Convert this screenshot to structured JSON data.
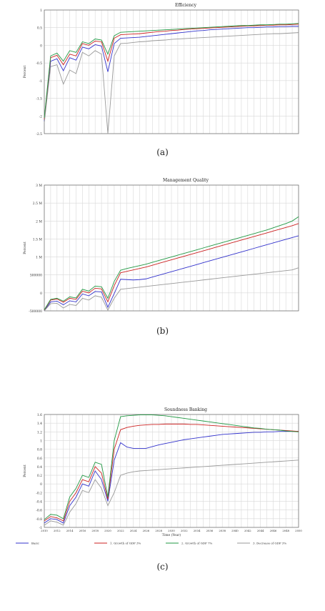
{
  "chart_data": [
    {
      "type": "line",
      "title": "Efficiency",
      "ylabel": "Percent",
      "ylim": [
        -2.5,
        1
      ],
      "yticks": [
        1,
        0.5,
        0,
        -0.5,
        -1,
        -1.5,
        -2,
        -2.5
      ],
      "x": [
        0,
        1,
        2,
        3,
        4,
        5,
        6,
        7,
        8,
        9,
        10,
        11,
        12,
        13,
        14,
        15,
        16,
        17,
        18,
        19,
        20,
        21,
        22,
        23,
        24,
        25,
        26,
        27,
        28,
        29,
        30,
        31,
        32,
        33,
        34,
        35,
        36,
        37,
        38,
        39,
        40
      ],
      "grid": true,
      "series": [
        {
          "color": "#3333cc",
          "values": [
            -2.15,
            -0.45,
            -0.38,
            -0.72,
            -0.35,
            -0.42,
            -0.05,
            -0.1,
            0.02,
            -0.02,
            -0.75,
            0.05,
            0.2,
            0.21,
            0.22,
            0.23,
            0.25,
            0.27,
            0.29,
            0.31,
            0.33,
            0.35,
            0.37,
            0.39,
            0.41,
            0.42,
            0.44,
            0.45,
            0.46,
            0.47,
            0.48,
            0.49,
            0.5,
            0.5,
            0.51,
            0.52,
            0.52,
            0.53,
            0.53,
            0.54,
            0.54
          ]
        },
        {
          "color": "#cc2222",
          "values": [
            -2.1,
            -0.35,
            -0.28,
            -0.55,
            -0.25,
            -0.3,
            0.05,
            0.0,
            0.12,
            0.1,
            -0.45,
            0.2,
            0.3,
            0.31,
            0.32,
            0.33,
            0.35,
            0.37,
            0.39,
            0.4,
            0.42,
            0.43,
            0.45,
            0.46,
            0.47,
            0.48,
            0.49,
            0.5,
            0.51,
            0.52,
            0.53,
            0.54,
            0.55,
            0.55,
            0.56,
            0.57,
            0.57,
            0.58,
            0.58,
            0.59,
            0.6
          ]
        },
        {
          "color": "#229944",
          "values": [
            -2.05,
            -0.3,
            -0.22,
            -0.45,
            -0.15,
            -0.2,
            0.1,
            0.05,
            0.18,
            0.15,
            -0.25,
            0.27,
            0.37,
            0.38,
            0.39,
            0.4,
            0.41,
            0.42,
            0.43,
            0.44,
            0.45,
            0.46,
            0.47,
            0.48,
            0.49,
            0.5,
            0.51,
            0.52,
            0.53,
            0.54,
            0.55,
            0.56,
            0.56,
            0.57,
            0.58,
            0.58,
            0.59,
            0.6,
            0.6,
            0.61,
            0.62
          ]
        },
        {
          "color": "#999999",
          "values": [
            -2.2,
            -0.6,
            -0.55,
            -1.1,
            -0.7,
            -0.8,
            -0.2,
            -0.3,
            -0.15,
            -0.25,
            -2.5,
            -0.3,
            0.05,
            0.06,
            0.08,
            0.1,
            0.11,
            0.13,
            0.14,
            0.15,
            0.17,
            0.18,
            0.19,
            0.2,
            0.21,
            0.22,
            0.23,
            0.24,
            0.25,
            0.26,
            0.27,
            0.28,
            0.29,
            0.3,
            0.31,
            0.32,
            0.33,
            0.33,
            0.34,
            0.35,
            0.36
          ]
        }
      ],
      "caption": "(a)"
    },
    {
      "type": "line",
      "title": "Management Quality",
      "ylabel": "Percent",
      "ylim": [
        -500000,
        3000000
      ],
      "yticks": [
        3000000,
        2500000,
        2000000,
        1500000,
        1000000,
        500000,
        0,
        -500000
      ],
      "ytick_labels": [
        "3 M",
        "2.5 M",
        "2 M",
        "1.5 M",
        "1 M",
        "500000",
        "0",
        "-500000"
      ],
      "x": [
        0,
        1,
        2,
        3,
        4,
        5,
        6,
        7,
        8,
        9,
        10,
        11,
        12,
        13,
        14,
        15,
        16,
        17,
        18,
        19,
        20,
        21,
        22,
        23,
        24,
        25,
        26,
        27,
        28,
        29,
        30,
        31,
        32,
        33,
        34,
        35,
        36,
        37,
        38,
        39,
        40
      ],
      "grid": true,
      "series": [
        {
          "color": "#3333cc",
          "values": [
            -500000,
            -250000,
            -230000,
            -330000,
            -220000,
            -250000,
            -30000,
            -80000,
            40000,
            30000,
            -400000,
            -20000,
            380000,
            370000,
            360000,
            370000,
            390000,
            440000,
            490000,
            540000,
            590000,
            640000,
            690000,
            740000,
            790000,
            840000,
            890000,
            940000,
            990000,
            1040000,
            1090000,
            1140000,
            1190000,
            1240000,
            1290000,
            1340000,
            1390000,
            1440000,
            1490000,
            1540000,
            1590000
          ]
        },
        {
          "color": "#cc2222",
          "values": [
            -480000,
            -200000,
            -170000,
            -260000,
            -150000,
            -180000,
            50000,
            0,
            130000,
            110000,
            -250000,
            200000,
            560000,
            600000,
            640000,
            680000,
            720000,
            770000,
            820000,
            870000,
            920000,
            970000,
            1020000,
            1070000,
            1120000,
            1170000,
            1220000,
            1270000,
            1320000,
            1370000,
            1420000,
            1470000,
            1520000,
            1570000,
            1620000,
            1670000,
            1720000,
            1770000,
            1820000,
            1870000,
            1930000
          ]
        },
        {
          "color": "#229944",
          "values": [
            -470000,
            -180000,
            -150000,
            -230000,
            -110000,
            -140000,
            100000,
            50000,
            190000,
            170000,
            -150000,
            320000,
            630000,
            680000,
            720000,
            760000,
            800000,
            850000,
            900000,
            950000,
            1000000,
            1050000,
            1100000,
            1150000,
            1200000,
            1250000,
            1300000,
            1350000,
            1400000,
            1450000,
            1500000,
            1550000,
            1600000,
            1650000,
            1700000,
            1750000,
            1810000,
            1870000,
            1930000,
            2000000,
            2120000
          ]
        },
        {
          "color": "#999999",
          "values": [
            -500000,
            -300000,
            -290000,
            -420000,
            -320000,
            -350000,
            -150000,
            -200000,
            -80000,
            -120000,
            -480000,
            -150000,
            100000,
            120000,
            140000,
            160000,
            180000,
            200000,
            220000,
            240000,
            260000,
            280000,
            300000,
            320000,
            340000,
            360000,
            380000,
            400000,
            420000,
            440000,
            460000,
            480000,
            500000,
            520000,
            540000,
            560000,
            580000,
            600000,
            620000,
            640000,
            700000
          ]
        }
      ],
      "caption": "(b)"
    },
    {
      "type": "line",
      "title": "Soundness Banking",
      "ylabel": "Percent",
      "xlabel": "Time (Year)",
      "ylim": [
        -1.0,
        1.6
      ],
      "yticks": [
        1.6,
        1.4,
        1.2,
        1,
        0.8,
        0.6,
        0.4,
        0.2,
        0,
        -0.2,
        -0.4,
        -0.6,
        -0.8,
        -1
      ],
      "ytick_labels": [
        "1.6",
        "1.4",
        "1.2",
        "1",
        "0.8",
        "0.6",
        "0.4",
        "0.2",
        "0",
        "-0.2",
        "-0.4",
        "-0.6",
        "-0.8",
        "-1"
      ],
      "x": [
        2010,
        2011,
        2012,
        2013,
        2014,
        2015,
        2016,
        2017,
        2018,
        2019,
        2020,
        2021,
        2022,
        2023,
        2024,
        2025,
        2026,
        2027,
        2028,
        2029,
        2030,
        2031,
        2032,
        2033,
        2034,
        2035,
        2036,
        2037,
        2038,
        2039,
        2040,
        2041,
        2042,
        2043,
        2044,
        2045,
        2046,
        2047,
        2048,
        2049,
        2050
      ],
      "xticks": [
        2010,
        2012,
        2014,
        2016,
        2018,
        2020,
        2022,
        2024,
        2026,
        2028,
        2030,
        2032,
        2034,
        2036,
        2038,
        2040,
        2042,
        2044,
        2046,
        2048,
        2050
      ],
      "xtick_labels": [
        "2010",
        "2012",
        "2014",
        "2016",
        "2018",
        "2020",
        "2022",
        "2024",
        "2026",
        "2028",
        "2030",
        "2032",
        "2034",
        "2036",
        "2038",
        "2040",
        "2042",
        "2044",
        "2046",
        "2048",
        "2050"
      ],
      "grid": true,
      "series": [
        {
          "name": "Basic",
          "color": "#3333cc",
          "values": [
            -0.9,
            -0.8,
            -0.82,
            -0.9,
            -0.5,
            -0.3,
            0.0,
            -0.05,
            0.3,
            0.1,
            -0.4,
            0.55,
            0.95,
            0.85,
            0.82,
            0.82,
            0.82,
            0.86,
            0.9,
            0.93,
            0.96,
            0.99,
            1.02,
            1.04,
            1.06,
            1.08,
            1.1,
            1.12,
            1.14,
            1.15,
            1.16,
            1.17,
            1.18,
            1.19,
            1.19,
            1.2,
            1.2,
            1.21,
            1.21,
            1.21,
            1.21
          ]
        },
        {
          "name": "1. Growth of GDP 3%",
          "color": "#cc2222",
          "values": [
            -0.85,
            -0.75,
            -0.78,
            -0.85,
            -0.4,
            -0.2,
            0.1,
            0.05,
            0.4,
            0.25,
            -0.35,
            0.8,
            1.25,
            1.3,
            1.33,
            1.35,
            1.36,
            1.37,
            1.37,
            1.38,
            1.38,
            1.38,
            1.38,
            1.37,
            1.37,
            1.36,
            1.35,
            1.34,
            1.33,
            1.32,
            1.31,
            1.3,
            1.29,
            1.28,
            1.27,
            1.26,
            1.25,
            1.24,
            1.23,
            1.22,
            1.21
          ]
        },
        {
          "name": "2. Growth of GDP 7%",
          "color": "#229944",
          "values": [
            -0.82,
            -0.7,
            -0.72,
            -0.8,
            -0.3,
            -0.1,
            0.2,
            0.15,
            0.5,
            0.45,
            -0.3,
            1.0,
            1.55,
            1.57,
            1.58,
            1.59,
            1.59,
            1.59,
            1.58,
            1.57,
            1.55,
            1.53,
            1.51,
            1.49,
            1.47,
            1.45,
            1.43,
            1.41,
            1.39,
            1.37,
            1.35,
            1.33,
            1.31,
            1.29,
            1.28,
            1.26,
            1.25,
            1.24,
            1.22,
            1.21,
            1.2
          ]
        },
        {
          "name": "3. Decrease of GDP 3%",
          "color": "#999999",
          "values": [
            -0.95,
            -0.85,
            -0.88,
            -0.95,
            -0.65,
            -0.45,
            -0.15,
            -0.2,
            0.1,
            -0.1,
            -0.5,
            -0.2,
            0.2,
            0.25,
            0.28,
            0.3,
            0.31,
            0.32,
            0.33,
            0.34,
            0.35,
            0.36,
            0.37,
            0.38,
            0.39,
            0.4,
            0.41,
            0.42,
            0.43,
            0.44,
            0.45,
            0.46,
            0.47,
            0.48,
            0.49,
            0.5,
            0.51,
            0.52,
            0.53,
            0.54,
            0.55
          ]
        }
      ],
      "caption": "(c)"
    }
  ]
}
